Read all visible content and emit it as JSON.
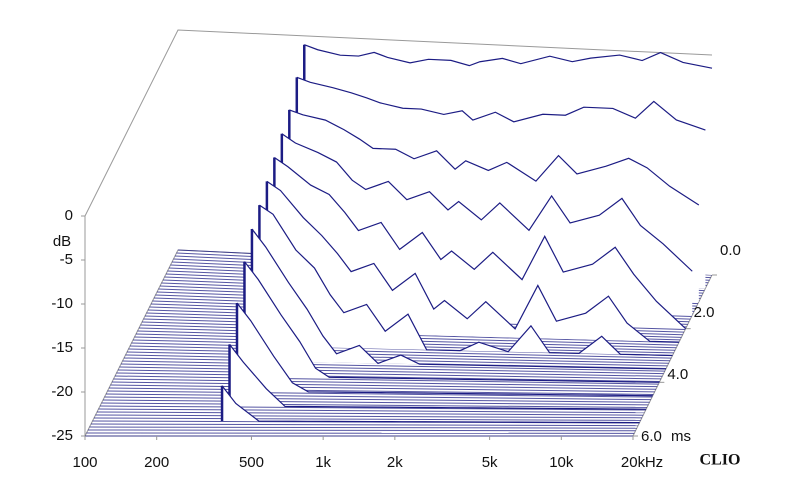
{
  "chart_data": {
    "type": "waterfall",
    "y_label": "dB",
    "x_unit": "Hz",
    "z_unit": "ms",
    "brand": "CLIO",
    "xlim": [
      100,
      20000
    ],
    "xticks": [
      100,
      200,
      500,
      {
        "value": 1000,
        "label": "1k"
      },
      {
        "value": 2000,
        "label": "2k"
      },
      {
        "value": 5000,
        "label": "5k"
      },
      {
        "value": 10000,
        "label": "10k"
      },
      {
        "value": 20000,
        "label": "20k"
      }
    ],
    "ylim": [
      -25,
      0
    ],
    "yticks": [
      0,
      -5,
      -10,
      -15,
      -20,
      -25
    ],
    "zlim": [
      0,
      6
    ],
    "zticks": [
      {
        "value": 0,
        "label": "0.0"
      },
      {
        "value": 2,
        "label": "2.0"
      },
      {
        "value": 4,
        "label": "4.0"
      },
      {
        "value": 6,
        "label": "6.0"
      }
    ],
    "color": "#1c1c84",
    "frequencies": [
      350,
      400,
      500,
      600,
      700,
      800,
      1000,
      1200,
      1500,
      1800,
      2000,
      2500,
      3000,
      4000,
      5000,
      6000,
      8000,
      10000,
      12000,
      15000,
      20000
    ],
    "slices": [
      {
        "time": 0,
        "values": [
          -1,
          -1.5,
          -2,
          -2,
          -1.5,
          -2,
          -2.5,
          -2,
          -2,
          -2.5,
          -2,
          -1.5,
          -2,
          -1,
          -1.5,
          -1,
          -0.5,
          -1,
          0,
          -1,
          -1.5
        ]
      },
      {
        "time": 0.5,
        "values": [
          -3,
          -3.5,
          -4,
          -4.5,
          -5,
          -5.5,
          -6,
          -6,
          -6.5,
          -6,
          -7,
          -6,
          -7,
          -6,
          -6,
          -5,
          -5,
          -6,
          -4,
          -6,
          -7
        ]
      },
      {
        "time": 1,
        "values": [
          -5,
          -5.5,
          -6,
          -7,
          -8,
          -9,
          -9,
          -10,
          -9,
          -11,
          -10,
          -11,
          -10,
          -12,
          -9,
          -11,
          -10,
          -9,
          -10,
          -12,
          -14
        ]
      },
      {
        "time": 1.5,
        "values": [
          -6,
          -7,
          -8,
          -9,
          -11,
          -12,
          -11,
          -13,
          -12,
          -14,
          -13,
          -15,
          -13,
          -16,
          -12,
          -15,
          -14,
          -12,
          -15,
          -17,
          -20
        ]
      },
      {
        "time": 2,
        "values": [
          -7,
          -8,
          -10,
          -11,
          -13,
          -15,
          -14,
          -17,
          -15,
          -18,
          -17,
          -19,
          -17,
          -20,
          -15,
          -19,
          -18,
          -16,
          -19,
          -22,
          -25
        ]
      },
      {
        "time": 2.5,
        "values": [
          -8,
          -9,
          -12,
          -14,
          -16,
          -18,
          -17,
          -20,
          -18,
          -22,
          -21,
          -23,
          -21,
          -24,
          -19,
          -23,
          -22,
          -20,
          -23,
          -25,
          -25
        ]
      },
      {
        "time": 3,
        "values": [
          -9,
          -10,
          -14,
          -16,
          -19,
          -21,
          -20,
          -23,
          -21,
          -25,
          -25,
          -25,
          -24,
          -25,
          -22,
          -25,
          -25,
          -23,
          -25,
          -25,
          -25
        ]
      },
      {
        "time": 3.5,
        "values": [
          -10,
          -12,
          -16,
          -19,
          -22,
          -24,
          -23,
          -25,
          -24,
          -25,
          -25,
          -25,
          -25,
          -25,
          -25,
          -25,
          -25,
          -25,
          -25,
          -25,
          -25
        ]
      },
      {
        "time": 4,
        "values": [
          -12,
          -14,
          -18,
          -21,
          -24,
          -25,
          -25,
          -25,
          -25,
          -25,
          -25,
          -25,
          -25,
          -25,
          -25,
          -25,
          -25,
          -25,
          -25,
          -25,
          -25
        ]
      },
      {
        "time": 4.5,
        "values": [
          -15,
          -17,
          -21,
          -24,
          -25,
          -25,
          -25,
          -25,
          -25,
          -25,
          -25,
          -25,
          -25,
          -25,
          -25,
          -25,
          -25,
          -25,
          -25,
          -25,
          -25
        ]
      },
      {
        "time": 5,
        "values": [
          -18,
          -20,
          -23,
          -25,
          -25,
          -25,
          -25,
          -25,
          -25,
          -25,
          -25,
          -25,
          -25,
          -25,
          -25,
          -25,
          -25,
          -25,
          -25,
          -25,
          -25
        ]
      },
      {
        "time": 5.5,
        "values": [
          -21,
          -23,
          -25,
          -25,
          -25,
          -25,
          -25,
          -25,
          -25,
          -25,
          -25,
          -25,
          -25,
          -25,
          -25,
          -25,
          -25,
          -25,
          -25,
          -25,
          -25
        ]
      }
    ]
  }
}
